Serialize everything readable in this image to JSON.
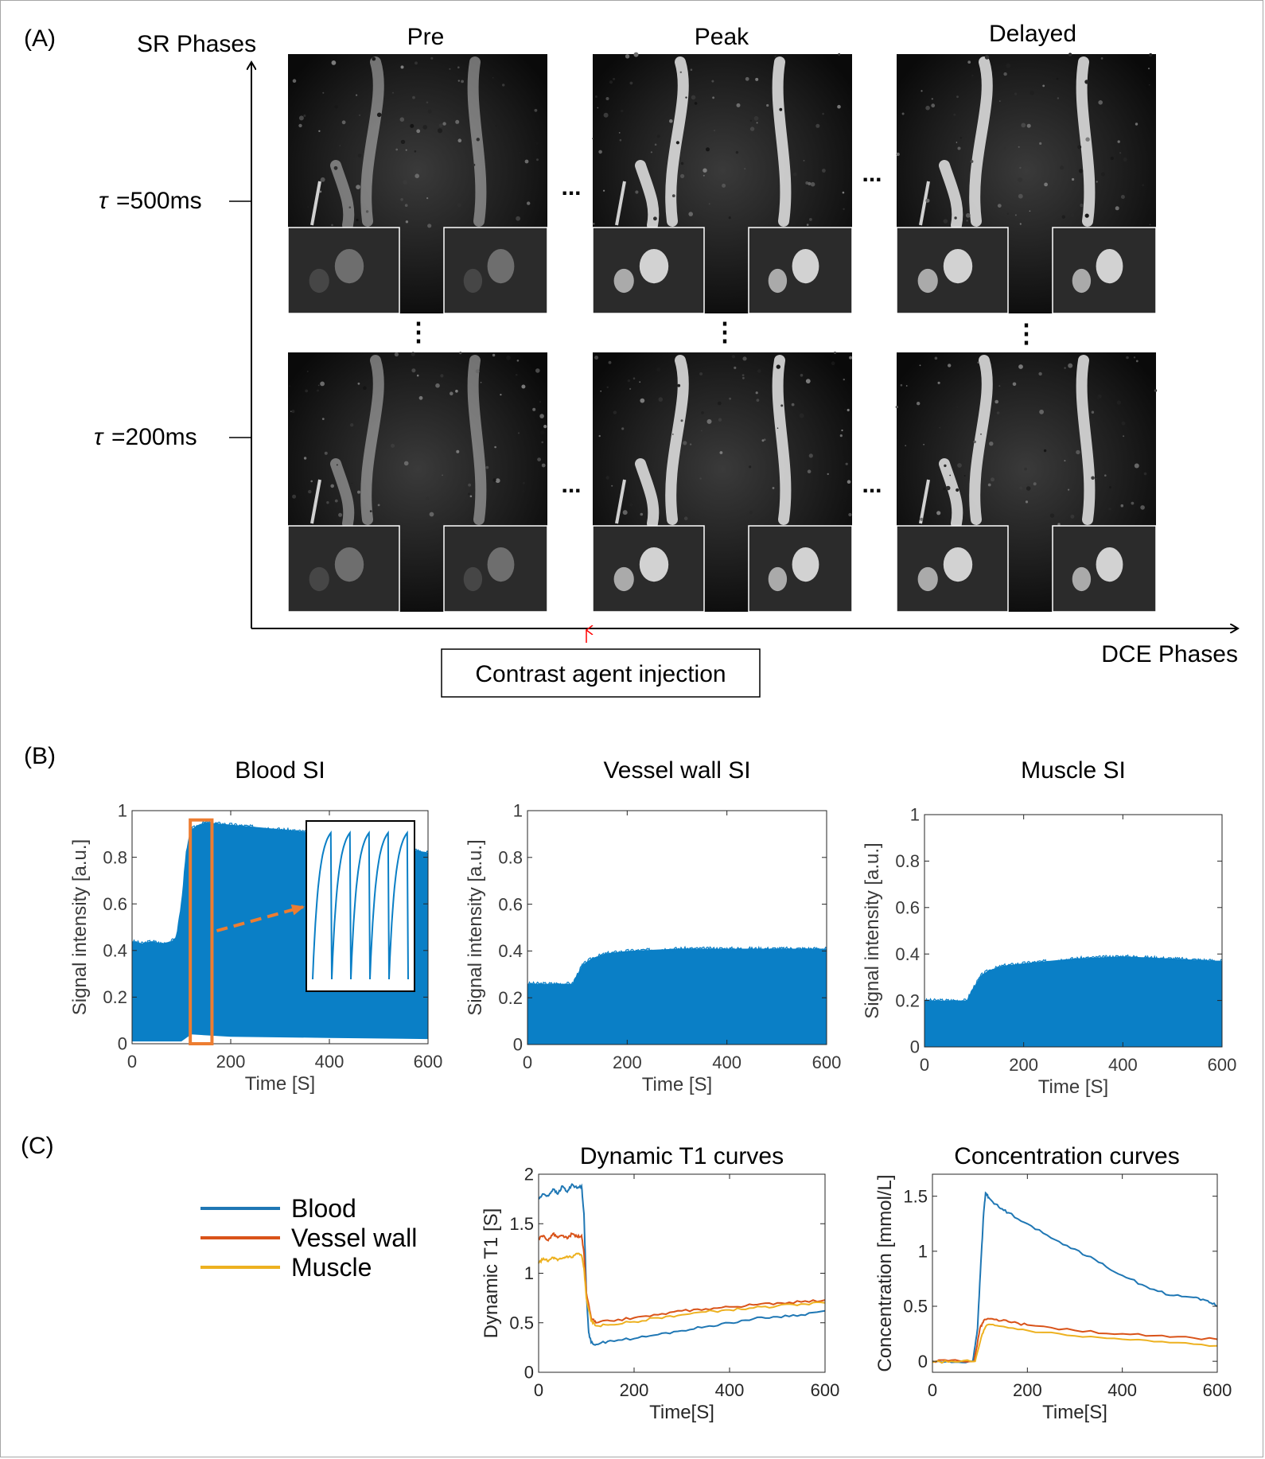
{
  "panels": {
    "a": "(A)",
    "b": "(B)",
    "c": "(C)"
  },
  "panel_a": {
    "y_axis_label": "SR Phases",
    "x_axis_label": "DCE Phases",
    "columns": [
      "Pre",
      "Peak",
      "Delayed"
    ],
    "rows": [
      "=500ms",
      "=200ms"
    ],
    "tau_symbol": "τ",
    "ellipsis_h": "...",
    "ellipsis_v": "⋮",
    "injection_label": "Contrast agent injection"
  },
  "colors": {
    "blood": "#1f77b4",
    "vessel": "#d95319",
    "muscle": "#edb120",
    "si": "#0a7fc6",
    "highlight": "#ed7d31",
    "arrow_red": "#ff0000"
  },
  "chart_data": [
    {
      "id": "blood-si",
      "type": "area",
      "title": "Blood SI",
      "xlabel": "Time [S]",
      "ylabel": "Signal intensity [a.u.]",
      "xlim": [
        0,
        600
      ],
      "ylim": [
        0,
        1
      ],
      "xticks": [
        "0",
        "200",
        "400",
        "600"
      ],
      "yticks": [
        "0",
        "0.2",
        "0.4",
        "0.6",
        "0.8",
        "1"
      ],
      "upper": [
        [
          0,
          0.44
        ],
        [
          20,
          0.43
        ],
        [
          40,
          0.44
        ],
        [
          60,
          0.43
        ],
        [
          80,
          0.44
        ],
        [
          90,
          0.46
        ],
        [
          100,
          0.6
        ],
        [
          110,
          0.82
        ],
        [
          120,
          0.92
        ],
        [
          135,
          0.94
        ],
        [
          150,
          0.95
        ],
        [
          200,
          0.94
        ],
        [
          250,
          0.93
        ],
        [
          300,
          0.92
        ],
        [
          350,
          0.91
        ],
        [
          400,
          0.89
        ],
        [
          450,
          0.87
        ],
        [
          500,
          0.85
        ],
        [
          550,
          0.84
        ],
        [
          600,
          0.82
        ]
      ],
      "lower": [
        [
          0,
          0.01
        ],
        [
          100,
          0.01
        ],
        [
          120,
          0.04
        ],
        [
          200,
          0.03
        ],
        [
          400,
          0.025
        ],
        [
          600,
          0.02
        ]
      ],
      "highlight_x": [
        118,
        162
      ],
      "highlight_y": [
        0.0,
        0.96
      ],
      "inset_wave": {
        "periods": 5,
        "min": 0.07,
        "max": 0.93
      }
    },
    {
      "id": "vessel-wall-si",
      "type": "area",
      "title": "Vessel wall SI",
      "xlabel": "Time [S]",
      "ylabel": "Signal intensity [a.u.]",
      "xlim": [
        0,
        600
      ],
      "ylim": [
        0,
        1
      ],
      "xticks": [
        "0",
        "200",
        "400",
        "600"
      ],
      "yticks": [
        "0",
        "0.2",
        "0.4",
        "0.6",
        "0.8",
        "1"
      ],
      "upper": [
        [
          0,
          0.26
        ],
        [
          50,
          0.26
        ],
        [
          90,
          0.26
        ],
        [
          100,
          0.3
        ],
        [
          110,
          0.34
        ],
        [
          130,
          0.37
        ],
        [
          160,
          0.39
        ],
        [
          200,
          0.4
        ],
        [
          300,
          0.41
        ],
        [
          400,
          0.41
        ],
        [
          500,
          0.41
        ],
        [
          600,
          0.41
        ]
      ],
      "lower": [
        [
          0,
          0.0
        ],
        [
          600,
          0.0
        ]
      ]
    },
    {
      "id": "muscle-si",
      "type": "area",
      "title": "Muscle SI",
      "xlabel": "Time [S]",
      "ylabel": "Signal intensity [a.u.]",
      "xlim": [
        0,
        600
      ],
      "ylim": [
        0,
        1
      ],
      "xticks": [
        "0",
        "200",
        "400",
        "600"
      ],
      "yticks": [
        "0",
        "0.2",
        "0.4",
        "0.6",
        "0.8",
        "1"
      ],
      "upper": [
        [
          0,
          0.2
        ],
        [
          50,
          0.2
        ],
        [
          85,
          0.2
        ],
        [
          100,
          0.26
        ],
        [
          115,
          0.31
        ],
        [
          130,
          0.33
        ],
        [
          160,
          0.35
        ],
        [
          200,
          0.36
        ],
        [
          300,
          0.38
        ],
        [
          400,
          0.39
        ],
        [
          500,
          0.38
        ],
        [
          600,
          0.37
        ]
      ],
      "lower": [
        [
          0,
          0.0
        ],
        [
          600,
          0.0
        ]
      ]
    },
    {
      "id": "dynamic-t1",
      "type": "line",
      "title": "Dynamic T1 curves",
      "xlabel": "Time[S]",
      "ylabel": "Dynamic T1 [S]",
      "xlim": [
        0,
        600
      ],
      "ylim": [
        0,
        2
      ],
      "xticks": [
        "0",
        "200",
        "400",
        "600"
      ],
      "yticks": [
        "0",
        "0.5",
        "1",
        "1.5",
        "2"
      ],
      "series": [
        {
          "name": "Blood",
          "color_key": "blood",
          "points": [
            [
              0,
              1.75
            ],
            [
              10,
              1.8
            ],
            [
              20,
              1.78
            ],
            [
              30,
              1.85
            ],
            [
              40,
              1.8
            ],
            [
              50,
              1.88
            ],
            [
              60,
              1.82
            ],
            [
              70,
              1.9
            ],
            [
              80,
              1.86
            ],
            [
              90,
              1.88
            ],
            [
              95,
              1.6
            ],
            [
              100,
              0.8
            ],
            [
              105,
              0.4
            ],
            [
              110,
              0.3
            ],
            [
              120,
              0.28
            ],
            [
              150,
              0.32
            ],
            [
              200,
              0.34
            ],
            [
              250,
              0.38
            ],
            [
              300,
              0.42
            ],
            [
              350,
              0.46
            ],
            [
              400,
              0.5
            ],
            [
              450,
              0.54
            ],
            [
              500,
              0.56
            ],
            [
              550,
              0.58
            ],
            [
              600,
              0.62
            ]
          ]
        },
        {
          "name": "Vessel wall",
          "color_key": "vessel",
          "points": [
            [
              0,
              1.35
            ],
            [
              10,
              1.38
            ],
            [
              20,
              1.33
            ],
            [
              30,
              1.4
            ],
            [
              40,
              1.36
            ],
            [
              50,
              1.38
            ],
            [
              60,
              1.35
            ],
            [
              70,
              1.4
            ],
            [
              80,
              1.37
            ],
            [
              90,
              1.38
            ],
            [
              95,
              1.2
            ],
            [
              100,
              0.8
            ],
            [
              110,
              0.55
            ],
            [
              120,
              0.5
            ],
            [
              150,
              0.52
            ],
            [
              200,
              0.55
            ],
            [
              250,
              0.58
            ],
            [
              300,
              0.62
            ],
            [
              350,
              0.64
            ],
            [
              400,
              0.66
            ],
            [
              450,
              0.68
            ],
            [
              500,
              0.7
            ],
            [
              550,
              0.71
            ],
            [
              600,
              0.73
            ]
          ]
        },
        {
          "name": "Muscle",
          "color_key": "muscle",
          "points": [
            [
              0,
              1.1
            ],
            [
              10,
              1.15
            ],
            [
              20,
              1.12
            ],
            [
              30,
              1.16
            ],
            [
              40,
              1.13
            ],
            [
              50,
              1.15
            ],
            [
              60,
              1.17
            ],
            [
              70,
              1.16
            ],
            [
              80,
              1.2
            ],
            [
              90,
              1.18
            ],
            [
              95,
              1.05
            ],
            [
              100,
              0.75
            ],
            [
              110,
              0.52
            ],
            [
              120,
              0.47
            ],
            [
              150,
              0.48
            ],
            [
              200,
              0.51
            ],
            [
              250,
              0.55
            ],
            [
              300,
              0.58
            ],
            [
              350,
              0.61
            ],
            [
              400,
              0.63
            ],
            [
              450,
              0.65
            ],
            [
              500,
              0.67
            ],
            [
              550,
              0.69
            ],
            [
              600,
              0.7
            ]
          ]
        }
      ]
    },
    {
      "id": "concentration",
      "type": "line",
      "title": "Concentration curves",
      "xlabel": "Time[S]",
      "ylabel": "Concentration [mmol/L]",
      "xlim": [
        0,
        600
      ],
      "ylim": [
        -0.1,
        1.7
      ],
      "xticks": [
        "0",
        "200",
        "400",
        "600"
      ],
      "ytick_values": [
        0,
        0.5,
        1,
        1.5
      ],
      "yticks": [
        "0",
        "0.5",
        "1",
        "1.5"
      ],
      "series": [
        {
          "name": "Blood",
          "color_key": "blood",
          "points": [
            [
              0,
              0.0
            ],
            [
              40,
              -0.01
            ],
            [
              85,
              0.0
            ],
            [
              95,
              0.3
            ],
            [
              102,
              0.9
            ],
            [
              108,
              1.35
            ],
            [
              112,
              1.53
            ],
            [
              120,
              1.48
            ],
            [
              140,
              1.4
            ],
            [
              160,
              1.35
            ],
            [
              200,
              1.25
            ],
            [
              250,
              1.12
            ],
            [
              300,
              1.02
            ],
            [
              350,
              0.9
            ],
            [
              400,
              0.78
            ],
            [
              450,
              0.68
            ],
            [
              500,
              0.6
            ],
            [
              550,
              0.58
            ],
            [
              580,
              0.55
            ],
            [
              600,
              0.5
            ]
          ]
        },
        {
          "name": "Vessel wall",
          "color_key": "vessel",
          "points": [
            [
              0,
              0.0
            ],
            [
              40,
              0.01
            ],
            [
              88,
              0.0
            ],
            [
              100,
              0.3
            ],
            [
              110,
              0.38
            ],
            [
              130,
              0.38
            ],
            [
              160,
              0.36
            ],
            [
              200,
              0.33
            ],
            [
              300,
              0.28
            ],
            [
              400,
              0.25
            ],
            [
              500,
              0.22
            ],
            [
              600,
              0.2
            ]
          ]
        },
        {
          "name": "Muscle",
          "color_key": "muscle",
          "points": [
            [
              0,
              -0.01
            ],
            [
              40,
              0.0
            ],
            [
              90,
              0.0
            ],
            [
              105,
              0.25
            ],
            [
              115,
              0.33
            ],
            [
              140,
              0.32
            ],
            [
              200,
              0.28
            ],
            [
              300,
              0.23
            ],
            [
              400,
              0.2
            ],
            [
              500,
              0.17
            ],
            [
              600,
              0.14
            ]
          ]
        }
      ]
    }
  ],
  "legend": [
    {
      "label": "Blood",
      "color_key": "blood"
    },
    {
      "label": "Vessel wall",
      "color_key": "vessel"
    },
    {
      "label": "Muscle",
      "color_key": "muscle"
    }
  ]
}
